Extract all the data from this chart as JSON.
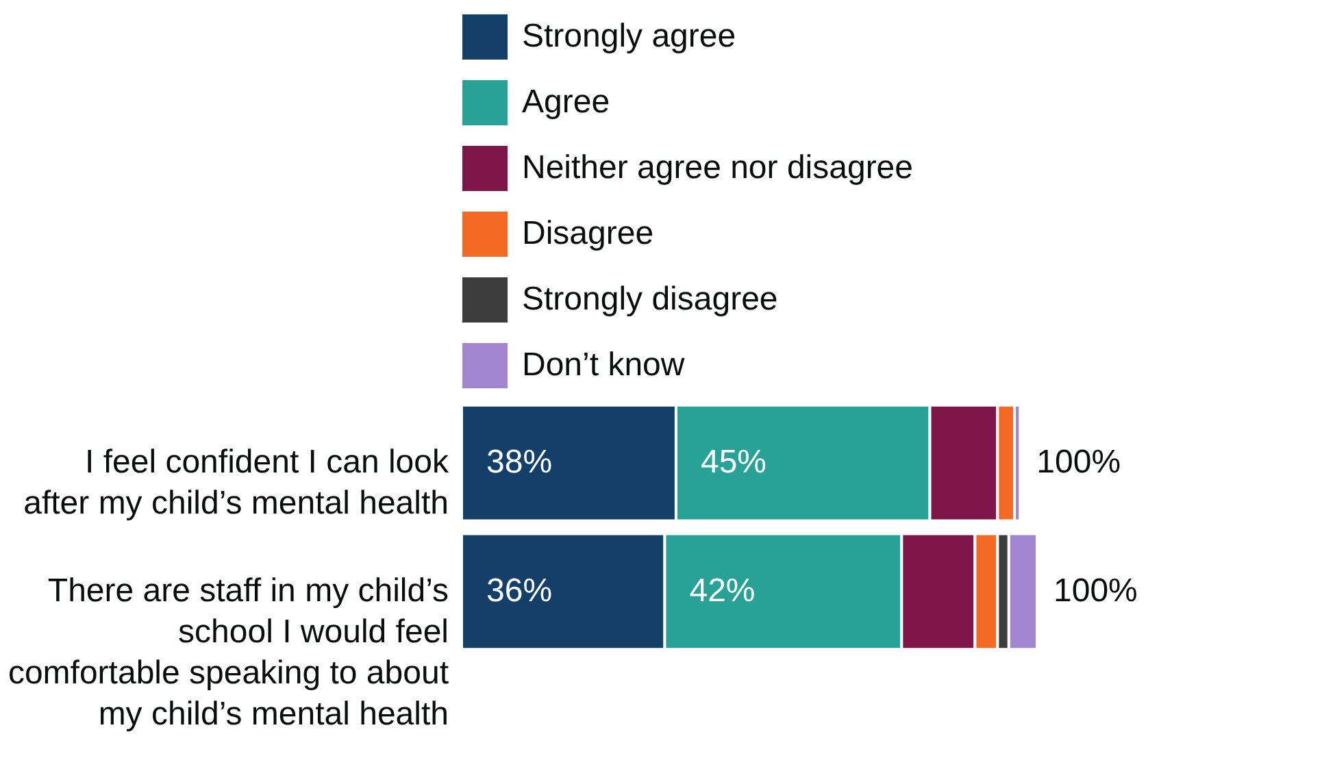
{
  "chart_data": {
    "type": "bar",
    "orientation": "horizontal",
    "stacked": true,
    "legend": "top",
    "categories": [
      "I feel confident I can look after my child’s mental health",
      "There are staff in my child’s school I would feel comfortable speaking to about my child’s mental health"
    ],
    "series": [
      {
        "name": "Strongly agree",
        "color": "#133f69",
        "values": [
          38,
          36
        ],
        "value_labels": [
          "38%",
          "36%"
        ]
      },
      {
        "name": "Agree",
        "color": "#28a197",
        "values": [
          45,
          42
        ],
        "value_labels": [
          "45%",
          "42%"
        ]
      },
      {
        "name": "Neither agree nor disagree",
        "color": "#7f1649",
        "values": [
          12,
          13
        ]
      },
      {
        "name": "Disagree",
        "color": "#f46a25",
        "values": [
          3,
          4
        ]
      },
      {
        "name": "Strongly disagree",
        "color": "#3d3d3d",
        "values": [
          0,
          2
        ]
      },
      {
        "name": "Don’t know",
        "color": "#a285d1",
        "values": [
          1,
          5
        ]
      }
    ],
    "totals": [
      "100%",
      "100%"
    ]
  }
}
